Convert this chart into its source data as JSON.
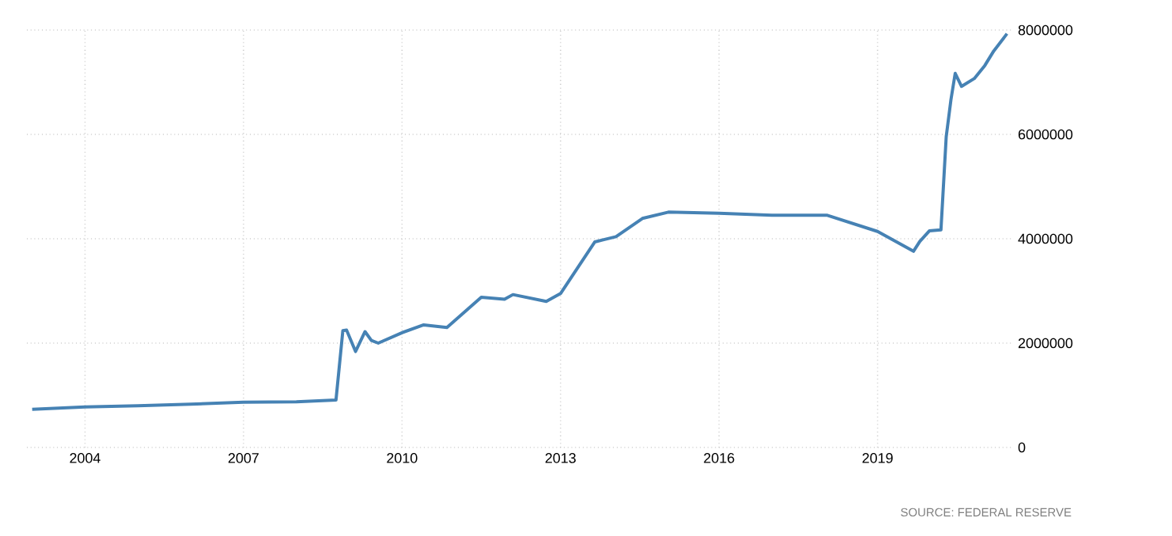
{
  "chart_data": {
    "type": "line",
    "x": [
      2003.0,
      2004.0,
      2005.0,
      2006.0,
      2007.0,
      2008.0,
      2008.75,
      2008.88,
      2008.95,
      2009.12,
      2009.3,
      2009.42,
      2009.55,
      2010.0,
      2010.41,
      2010.85,
      2011.5,
      2011.94,
      2012.1,
      2012.73,
      2013.0,
      2013.65,
      2014.05,
      2014.55,
      2015.04,
      2016.0,
      2017.0,
      2018.05,
      2019.0,
      2019.68,
      2019.8,
      2019.98,
      2020.2,
      2020.3,
      2020.39,
      2020.47,
      2020.59,
      2020.83,
      2021.03,
      2021.2,
      2021.45
    ],
    "series": [
      {
        "color": "#4682b4",
        "values": [
          730000,
          776000,
          800000,
          830000,
          867000,
          875000,
          909000,
          2240000,
          2250000,
          1840000,
          2220000,
          2050000,
          2000000,
          2200000,
          2350000,
          2300000,
          2880000,
          2840000,
          2930000,
          2800000,
          2950000,
          3940000,
          4040000,
          4390000,
          4510000,
          4490000,
          4450000,
          4450000,
          4140000,
          3760000,
          3950000,
          4150000,
          4170000,
          5960000,
          6670000,
          7170000,
          6920000,
          7070000,
          7320000,
          7600000,
          7930000
        ]
      }
    ],
    "xlim": [
      2002.9,
      2021.55
    ],
    "ylim": [
      0,
      8000000
    ],
    "xticks": [
      2004,
      2007,
      2010,
      2013,
      2016,
      2019
    ],
    "yticks": [
      0,
      2000000,
      4000000,
      6000000,
      8000000
    ],
    "grid": true,
    "line_style": "solid",
    "marker": "none",
    "annotations": [
      "SOURCE: FEDERAL RESERVE"
    ]
  }
}
